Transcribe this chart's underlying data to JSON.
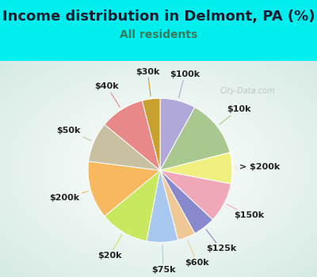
{
  "title": "Income distribution in Delmont, PA (%)",
  "subtitle": "All residents",
  "title_fontsize": 13,
  "subtitle_fontsize": 10,
  "title_color": "#1a1a2e",
  "subtitle_color": "#3a7a5a",
  "top_bg_color": "#00EEEE",
  "chart_bg_color": "#e0f5ee",
  "watermark": "City-Data.com",
  "segments": [
    {
      "label": "$100k",
      "value": 8,
      "color": "#b0a8d8"
    },
    {
      "label": "$10k",
      "value": 13,
      "color": "#a8c890"
    },
    {
      "label": "> $200k",
      "value": 7,
      "color": "#f0f080"
    },
    {
      "label": "$150k",
      "value": 9,
      "color": "#f0a8b8"
    },
    {
      "label": "$125k",
      "value": 5,
      "color": "#8888cc"
    },
    {
      "label": "$60k",
      "value": 4,
      "color": "#f0c898"
    },
    {
      "label": "$75k",
      "value": 7,
      "color": "#a8c8f0"
    },
    {
      "label": "$20k",
      "value": 11,
      "color": "#c8e860"
    },
    {
      "label": "$200k",
      "value": 13,
      "color": "#f8b860"
    },
    {
      "label": "$50k",
      "value": 9,
      "color": "#c8c0a0"
    },
    {
      "label": "$40k",
      "value": 10,
      "color": "#e88888"
    },
    {
      "label": "$30k",
      "value": 4,
      "color": "#c8a030"
    }
  ],
  "label_fontsize": 8.0,
  "label_color": "#222222"
}
